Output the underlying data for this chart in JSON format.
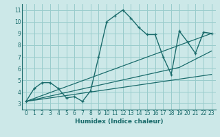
{
  "xlabel": "Humidex (Indice chaleur)",
  "bg_color": "#cce8e8",
  "grid_color": "#99cccc",
  "line_color": "#1a6b6b",
  "xlim": [
    -0.5,
    23.5
  ],
  "ylim": [
    2.5,
    11.5
  ],
  "xticks": [
    0,
    1,
    2,
    3,
    4,
    5,
    6,
    7,
    8,
    9,
    10,
    11,
    12,
    13,
    14,
    15,
    16,
    17,
    18,
    19,
    20,
    21,
    22,
    23
  ],
  "yticks": [
    3,
    4,
    5,
    6,
    7,
    8,
    9,
    10,
    11
  ],
  "main_line": {
    "x": [
      0,
      1,
      2,
      3,
      4,
      5,
      6,
      7,
      8,
      9,
      10,
      11,
      12,
      13,
      14,
      15,
      16,
      17,
      18,
      19,
      20,
      21,
      22,
      23
    ],
    "y": [
      3.2,
      4.3,
      4.8,
      4.8,
      4.3,
      3.5,
      3.6,
      3.2,
      4.1,
      7.0,
      10.0,
      10.5,
      11.0,
      10.3,
      9.5,
      8.9,
      8.9,
      7.0,
      5.5,
      9.2,
      8.3,
      7.3,
      9.1,
      9.0
    ]
  },
  "straight_lines": [
    {
      "x": [
        0,
        23
      ],
      "y": [
        3.2,
        9.0
      ]
    },
    {
      "x": [
        0,
        19,
        23
      ],
      "y": [
        3.2,
        6.1,
        7.5
      ]
    },
    {
      "x": [
        0,
        23
      ],
      "y": [
        3.2,
        5.5
      ]
    }
  ]
}
